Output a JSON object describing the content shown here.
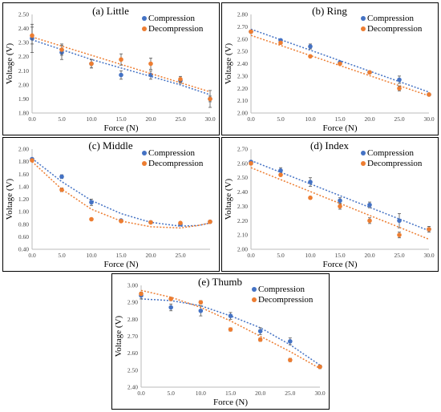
{
  "chart_data": [
    {
      "type": "scatter",
      "title": "(a) Little",
      "xlabel": "Force (N)",
      "ylabel": "Voltage (V)",
      "xlim": [
        0,
        30
      ],
      "ylim": [
        1.8,
        2.5
      ],
      "xticks": [
        "0.0",
        "5.0",
        "10.0",
        "15.0",
        "20.0",
        "25.0",
        "30.0"
      ],
      "yticks": [
        "1.80",
        "1.90",
        "2.00",
        "2.10",
        "2.20",
        "2.30",
        "2.40",
        "2.50"
      ],
      "legend_position": "top-right",
      "series": [
        {
          "name": "Compression",
          "color": "#4472C4",
          "x": [
            0,
            5,
            10,
            15,
            20,
            25,
            30
          ],
          "y": [
            2.33,
            2.23,
            2.15,
            2.07,
            2.07,
            2.03,
            1.9
          ],
          "err": [
            0.1,
            0.05,
            0.03,
            0.03,
            0.03,
            0.02,
            0.06
          ],
          "trend": [
            [
              0,
              2.32
            ],
            [
              5,
              2.25
            ],
            [
              10,
              2.18
            ],
            [
              15,
              2.12
            ],
            [
              20,
              2.06
            ],
            [
              25,
              2.0
            ],
            [
              30,
              1.93
            ]
          ]
        },
        {
          "name": "Decompression",
          "color": "#ED7D31",
          "x": [
            0,
            5,
            10,
            15,
            20,
            25,
            30
          ],
          "y": [
            2.35,
            2.25,
            2.15,
            2.18,
            2.15,
            2.04,
            1.9
          ],
          "err": [
            0.06,
            0.04,
            0.03,
            0.04,
            0.04,
            0.02,
            0.02
          ],
          "trend": [
            [
              0,
              2.34
            ],
            [
              30,
              1.95
            ]
          ]
        }
      ]
    },
    {
      "type": "scatter",
      "title": "(b) Ring",
      "xlabel": "Force (N)",
      "ylabel": "Voltage (V)",
      "xlim": [
        0,
        30
      ],
      "ylim": [
        2.0,
        2.8
      ],
      "xticks": [
        "0.0",
        "5.0",
        "10.0",
        "15.0",
        "20.0",
        "25.0",
        "30.0"
      ],
      "yticks": [
        "2.00",
        "2.10",
        "2.20",
        "2.30",
        "2.40",
        "2.50",
        "2.60",
        "2.70",
        "2.80"
      ],
      "legend_position": "top-right",
      "series": [
        {
          "name": "Compression",
          "color": "#4472C4",
          "x": [
            0,
            5,
            10,
            15,
            20,
            25,
            30
          ],
          "y": [
            2.66,
            2.59,
            2.54,
            2.41,
            2.33,
            2.27,
            2.15
          ],
          "err": [
            0.01,
            0.01,
            0.02,
            0.01,
            0.01,
            0.03,
            0.01
          ],
          "trend": [
            [
              0,
              2.68
            ],
            [
              30,
              2.17
            ]
          ]
        },
        {
          "name": "Decompression",
          "color": "#ED7D31",
          "x": [
            0,
            5,
            10,
            15,
            20,
            25,
            30
          ],
          "y": [
            2.66,
            2.57,
            2.46,
            2.4,
            2.33,
            2.2,
            2.15
          ],
          "err": [
            0.01,
            0.01,
            0.01,
            0.01,
            0.01,
            0.02,
            0.01
          ],
          "trend": [
            [
              0,
              2.63
            ],
            [
              30,
              2.14
            ]
          ]
        }
      ]
    },
    {
      "type": "scatter",
      "title": "(c) Middle",
      "xlabel": "Force (N)",
      "ylabel": "Voltage (V)",
      "xlim": [
        0,
        30
      ],
      "ylim": [
        0.4,
        2.0
      ],
      "xticks": [
        "0.0",
        "5.0",
        "10.0",
        "15.0",
        "20.0",
        "25.0"
      ],
      "yticks": [
        "0.40",
        "0.60",
        "0.80",
        "1.00",
        "1.20",
        "1.40",
        "1.60",
        "1.80",
        "2.00"
      ],
      "legend_position": "top-right",
      "series": [
        {
          "name": "Compression",
          "color": "#4472C4",
          "x": [
            0,
            5,
            10,
            15,
            20,
            25,
            30
          ],
          "y": [
            1.84,
            1.56,
            1.15,
            0.86,
            0.83,
            0.8,
            0.84
          ],
          "err": [
            0.02,
            0.03,
            0.05,
            0.02,
            0.02,
            0.02,
            0.02
          ],
          "trend": [
            [
              0,
              1.85
            ],
            [
              5,
              1.48
            ],
            [
              10,
              1.18
            ],
            [
              15,
              0.97
            ],
            [
              20,
              0.83
            ],
            [
              25,
              0.77
            ],
            [
              28,
              0.78
            ],
            [
              30,
              0.82
            ]
          ]
        },
        {
          "name": "Decompression",
          "color": "#ED7D31",
          "x": [
            0,
            5,
            10,
            15,
            20,
            25,
            30
          ],
          "y": [
            1.82,
            1.35,
            0.88,
            0.85,
            0.83,
            0.82,
            0.84
          ],
          "err": [
            0.02,
            0.03,
            0.01,
            0.02,
            0.02,
            0.02,
            0.02
          ],
          "trend": [
            [
              0,
              1.8
            ],
            [
              5,
              1.36
            ],
            [
              10,
              1.04
            ],
            [
              15,
              0.85
            ],
            [
              20,
              0.76
            ],
            [
              25,
              0.74
            ],
            [
              28,
              0.78
            ],
            [
              30,
              0.82
            ]
          ]
        }
      ]
    },
    {
      "type": "scatter",
      "title": "(d) Index",
      "xlabel": "Force (N)",
      "ylabel": "Voltage (V)",
      "xlim": [
        0,
        30
      ],
      "ylim": [
        2.0,
        2.7
      ],
      "xticks": [
        "0.0",
        "5.0",
        "10.0",
        "15.0",
        "20.0",
        "25.0",
        "30.0"
      ],
      "yticks": [
        "2.00",
        "2.10",
        "2.20",
        "2.30",
        "2.40",
        "2.50",
        "2.60",
        "2.70"
      ],
      "legend_position": "top-right",
      "series": [
        {
          "name": "Compression",
          "color": "#4472C4",
          "x": [
            0,
            5,
            10,
            15,
            20,
            25,
            30
          ],
          "y": [
            2.61,
            2.55,
            2.47,
            2.34,
            2.31,
            2.2,
            2.14
          ],
          "err": [
            0.01,
            0.02,
            0.03,
            0.02,
            0.02,
            0.05,
            0.02
          ],
          "trend": [
            [
              0,
              2.62
            ],
            [
              30,
              2.13
            ]
          ]
        },
        {
          "name": "Decompression",
          "color": "#ED7D31",
          "x": [
            0,
            5,
            10,
            15,
            20,
            25,
            30
          ],
          "y": [
            2.6,
            2.52,
            2.36,
            2.3,
            2.2,
            2.1,
            2.14
          ],
          "err": [
            0.01,
            0.01,
            0.01,
            0.02,
            0.02,
            0.02,
            0.01
          ],
          "trend": [
            [
              0,
              2.57
            ],
            [
              30,
              2.07
            ]
          ]
        }
      ]
    },
    {
      "type": "scatter",
      "title": "(e) Thumb",
      "xlabel": "Force (N)",
      "ylabel": "Voltage (V)",
      "xlim": [
        0,
        30
      ],
      "ylim": [
        2.4,
        3.0
      ],
      "xticks": [
        "0.0",
        "5.0",
        "10.0",
        "15.0",
        "20.0",
        "25.0",
        "30.0"
      ],
      "yticks": [
        "2.40",
        "2.50",
        "2.60",
        "2.70",
        "2.80",
        "2.90",
        "3.00"
      ],
      "legend_position": "top-right",
      "series": [
        {
          "name": "Compression",
          "color": "#4472C4",
          "x": [
            0,
            5,
            10,
            15,
            20,
            25,
            30
          ],
          "y": [
            2.94,
            2.87,
            2.85,
            2.82,
            2.73,
            2.67,
            2.52
          ],
          "err": [
            0.02,
            0.02,
            0.03,
            0.02,
            0.02,
            0.02,
            0.01
          ],
          "trend": [
            [
              0,
              2.92
            ],
            [
              5,
              2.91
            ],
            [
              10,
              2.88
            ],
            [
              15,
              2.82
            ],
            [
              20,
              2.75
            ],
            [
              25,
              2.65
            ],
            [
              30,
              2.53
            ]
          ]
        },
        {
          "name": "Decompression",
          "color": "#ED7D31",
          "x": [
            0,
            5,
            10,
            15,
            20,
            25,
            30
          ],
          "y": [
            2.95,
            2.92,
            2.9,
            2.74,
            2.68,
            2.56,
            2.52
          ],
          "err": [
            0.01,
            0.01,
            0.01,
            0.01,
            0.01,
            0.01,
            0.01
          ],
          "trend": [
            [
              0,
              2.97
            ],
            [
              5,
              2.93
            ],
            [
              10,
              2.87
            ],
            [
              15,
              2.79
            ],
            [
              20,
              2.7
            ],
            [
              25,
              2.61
            ],
            [
              30,
              2.51
            ]
          ]
        }
      ]
    }
  ]
}
